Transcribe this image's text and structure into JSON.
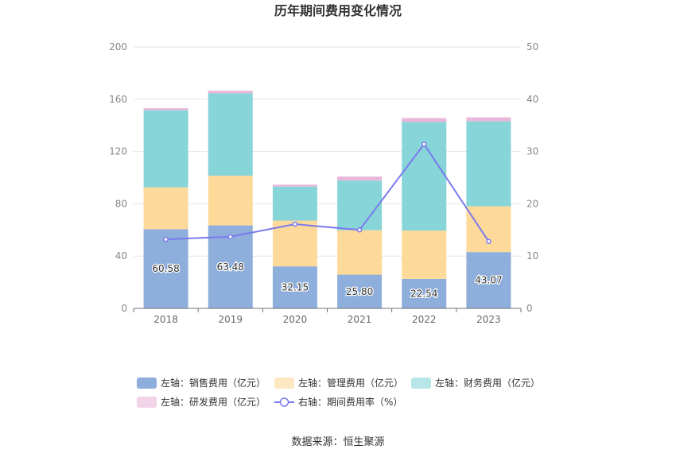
{
  "chart_data": {
    "type": "bar",
    "title": "历年期间费用变化情况",
    "categories": [
      "2018",
      "2019",
      "2020",
      "2021",
      "2022",
      "2023"
    ],
    "ylim_left": [
      0,
      200
    ],
    "ylim_right": [
      0,
      50
    ],
    "yticks_left": [
      "0",
      "40",
      "80",
      "120",
      "160",
      "200"
    ],
    "yticks_right": [
      "0",
      "10",
      "20",
      "30",
      "40",
      "50"
    ],
    "grid": true,
    "legend_position": "bottom",
    "series": [
      {
        "name": "左轴：销售费用（亿元）",
        "type": "bar",
        "axis": "left",
        "color": "#8eaedb",
        "values": [
          60.58,
          63.48,
          32.15,
          25.8,
          22.54,
          43.07
        ],
        "labels": [
          "60.58",
          "63.48",
          "32.15",
          "25.80",
          "22.54",
          "43.07"
        ]
      },
      {
        "name": "左轴：管理费用（亿元）",
        "type": "bar",
        "axis": "left",
        "color": "#fdd99a",
        "values": [
          32.0,
          38.0,
          35.0,
          34.0,
          37.0,
          35.0
        ]
      },
      {
        "name": "左轴：财务费用（亿元）",
        "type": "bar",
        "axis": "left",
        "color": "#87d5d9",
        "values": [
          59.0,
          63.0,
          26.0,
          38.0,
          83.0,
          65.0
        ]
      },
      {
        "name": "左轴：研发费用（亿元）",
        "type": "bar",
        "axis": "left",
        "color": "#e9b6d9",
        "values": [
          1.5,
          2.0,
          1.5,
          3.0,
          3.0,
          3.0
        ]
      },
      {
        "name": "右轴：期间费用率（%）",
        "type": "line",
        "axis": "right",
        "color": "#7b7bee",
        "values": [
          13.2,
          13.7,
          16.1,
          15.0,
          31.4,
          12.8
        ]
      }
    ]
  },
  "source": "数据来源：恒生聚源"
}
